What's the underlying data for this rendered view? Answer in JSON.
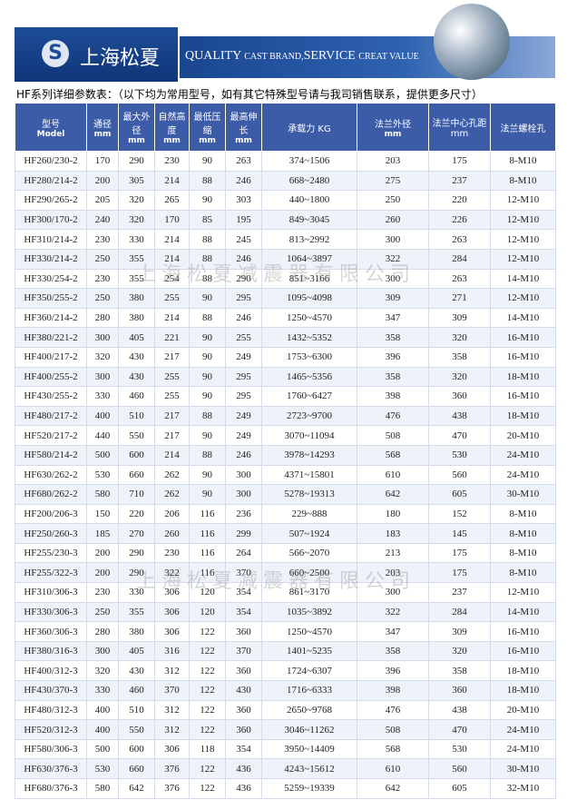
{
  "header": {
    "logo_text": "上海松夏",
    "slogan": [
      "QUALITY",
      "CAST BRAND,",
      "SERVICE",
      "CREAT VALUE"
    ]
  },
  "subtitle": "HF系列详细参数表：（以下均为常用型号，如有其它特殊型号请与我司销售联系，提供更多尺寸）",
  "watermark": [
    "上海松夏减震器有限公司",
    "上海松夏减震器有限公司"
  ],
  "table": {
    "columns": [
      {
        "label": "型号",
        "unit": "Model"
      },
      {
        "label": "通径",
        "unit": "mm"
      },
      {
        "label": "最大外径",
        "unit": "mm"
      },
      {
        "label": "自然高度",
        "unit": "mm"
      },
      {
        "label": "最低压缩",
        "unit": "mm"
      },
      {
        "label": "最高伸长",
        "unit": "mm"
      },
      {
        "label": "承载力 KG"
      },
      {
        "label": "法兰外径",
        "unit": "mm"
      },
      {
        "label": "法兰中心孔距 mm"
      },
      {
        "label": "法兰螺栓孔"
      }
    ],
    "rows": [
      [
        "HF260/230-2",
        "170",
        "290",
        "230",
        "90",
        "263",
        "374~1506",
        "203",
        "175",
        "8-M10"
      ],
      [
        "HF280/214-2",
        "200",
        "305",
        "214",
        "88",
        "246",
        "668~2480",
        "275",
        "237",
        "8-M10"
      ],
      [
        "HF290/265-2",
        "205",
        "320",
        "265",
        "90",
        "303",
        "440~1800",
        "250",
        "220",
        "12-M10"
      ],
      [
        "HF300/170-2",
        "240",
        "320",
        "170",
        "85",
        "195",
        "849~3045",
        "260",
        "226",
        "12-M10"
      ],
      [
        "HF310/214-2",
        "230",
        "330",
        "214",
        "88",
        "245",
        "813~2992",
        "300",
        "263",
        "12-M10"
      ],
      [
        "HF330/214-2",
        "250",
        "355",
        "214",
        "88",
        "246",
        "1064~3897",
        "322",
        "284",
        "12-M10"
      ],
      [
        "HF330/254-2",
        "230",
        "355",
        "254",
        "88",
        "290",
        "851~3166",
        "300",
        "263",
        "14-M10"
      ],
      [
        "HF350/255-2",
        "250",
        "380",
        "255",
        "90",
        "295",
        "1095~4098",
        "309",
        "271",
        "12-M10"
      ],
      [
        "HF360/214-2",
        "280",
        "380",
        "214",
        "88",
        "246",
        "1250~4570",
        "347",
        "309",
        "14-M10"
      ],
      [
        "HF380/221-2",
        "300",
        "405",
        "221",
        "90",
        "255",
        "1432~5352",
        "358",
        "320",
        "16-M10"
      ],
      [
        "HF400/217-2",
        "320",
        "430",
        "217",
        "90",
        "249",
        "1753~6300",
        "396",
        "358",
        "16-M10"
      ],
      [
        "HF400/255-2",
        "300",
        "430",
        "255",
        "90",
        "295",
        "1465~5356",
        "358",
        "320",
        "18-M10"
      ],
      [
        "HF430/255-2",
        "330",
        "460",
        "255",
        "90",
        "295",
        "1760~6427",
        "398",
        "360",
        "16-M10"
      ],
      [
        "HF480/217-2",
        "400",
        "510",
        "217",
        "88",
        "249",
        "2723~9700",
        "476",
        "438",
        "18-M10"
      ],
      [
        "HF520/217-2",
        "440",
        "550",
        "217",
        "90",
        "249",
        "3070~11094",
        "508",
        "470",
        "20-M10"
      ],
      [
        "HF580/214-2",
        "500",
        "600",
        "214",
        "88",
        "246",
        "3978~14293",
        "568",
        "530",
        "24-M10"
      ],
      [
        "HF630/262-2",
        "530",
        "660",
        "262",
        "90",
        "300",
        "4371~15801",
        "610",
        "560",
        "24-M10"
      ],
      [
        "HF680/262-2",
        "580",
        "710",
        "262",
        "90",
        "300",
        "5278~19313",
        "642",
        "605",
        "30-M10"
      ],
      [
        "HF200/206-3",
        "150",
        "220",
        "206",
        "116",
        "236",
        "229~888",
        "180",
        "152",
        "8-M10"
      ],
      [
        "HF250/260-3",
        "185",
        "270",
        "260",
        "116",
        "299",
        "507~1924",
        "183",
        "145",
        "8-M10"
      ],
      [
        "HF255/230-3",
        "200",
        "290",
        "230",
        "116",
        "264",
        "566~2070",
        "213",
        "175",
        "8-M10"
      ],
      [
        "HF255/322-3",
        "200",
        "290",
        "322",
        "116",
        "370",
        "660~2500",
        "203",
        "175",
        "8-M10"
      ],
      [
        "HF310/306-3",
        "230",
        "330",
        "306",
        "120",
        "354",
        "861~3170",
        "300",
        "237",
        "12-M10"
      ],
      [
        "HF330/306-3",
        "250",
        "355",
        "306",
        "120",
        "354",
        "1035~3892",
        "322",
        "284",
        "14-M10"
      ],
      [
        "HF360/306-3",
        "280",
        "380",
        "306",
        "122",
        "360",
        "1250~4570",
        "347",
        "309",
        "16-M10"
      ],
      [
        "HF380/316-3",
        "300",
        "405",
        "316",
        "122",
        "370",
        "1401~5235",
        "358",
        "320",
        "16-M10"
      ],
      [
        "HF400/312-3",
        "320",
        "430",
        "312",
        "122",
        "360",
        "1724~6307",
        "396",
        "358",
        "18-M10"
      ],
      [
        "HF430/370-3",
        "330",
        "460",
        "370",
        "122",
        "430",
        "1716~6333",
        "398",
        "360",
        "18-M10"
      ],
      [
        "HF480/312-3",
        "400",
        "510",
        "312",
        "122",
        "360",
        "2650~9768",
        "476",
        "438",
        "20-M10"
      ],
      [
        "HF520/312-3",
        "400",
        "550",
        "312",
        "122",
        "360",
        "3046~11262",
        "508",
        "470",
        "24-M10"
      ],
      [
        "HF580/306-3",
        "500",
        "600",
        "306",
        "118",
        "354",
        "3950~14409",
        "568",
        "530",
        "24-M10"
      ],
      [
        "HF630/376-3",
        "530",
        "660",
        "376",
        "122",
        "436",
        "4243~15612",
        "610",
        "560",
        "30-M10"
      ],
      [
        "HF680/376-3",
        "580",
        "642",
        "376",
        "122",
        "436",
        "5259~19339",
        "642",
        "605",
        "32-M10"
      ]
    ]
  }
}
